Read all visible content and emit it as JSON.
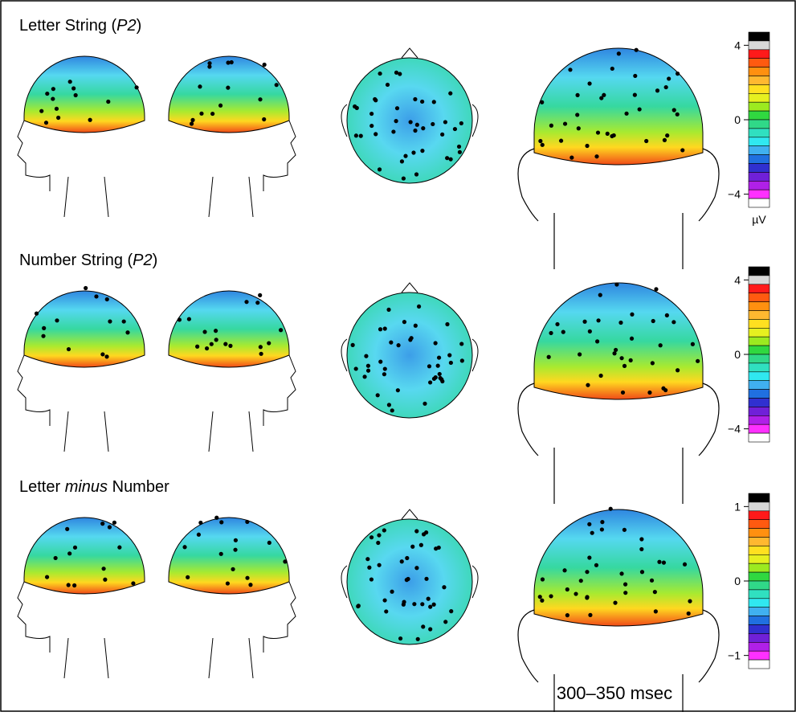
{
  "rows": [
    {
      "title": {
        "before": "Letter String (",
        "italic": "P2",
        "after": ")"
      },
      "colorbar": {
        "ticks": [
          "4",
          "0",
          "−4"
        ],
        "unit": "µV"
      }
    },
    {
      "title": {
        "before": "Number String (",
        "italic": "P2",
        "after": ")"
      },
      "colorbar": {
        "ticks": [
          "4",
          "0",
          "−4"
        ]
      }
    },
    {
      "title": {
        "before": "Letter ",
        "italic": "minus",
        "after": " Number"
      },
      "colorbar": {
        "ticks": [
          "1",
          "0",
          "−1"
        ]
      }
    }
  ],
  "time_window": "300–350 msec",
  "colorbar_colors": [
    "#000000",
    "#d8d8d8",
    "#ff1a1a",
    "#ff5a10",
    "#ff9010",
    "#ffb830",
    "#ffe020",
    "#e6f020",
    "#9cea20",
    "#30d840",
    "#30d888",
    "#30e0c0",
    "#30e8f0",
    "#40b0f0",
    "#2070e0",
    "#3030d0",
    "#7020d8",
    "#b020e8",
    "#ff30ff",
    "#ffffff"
  ]
}
